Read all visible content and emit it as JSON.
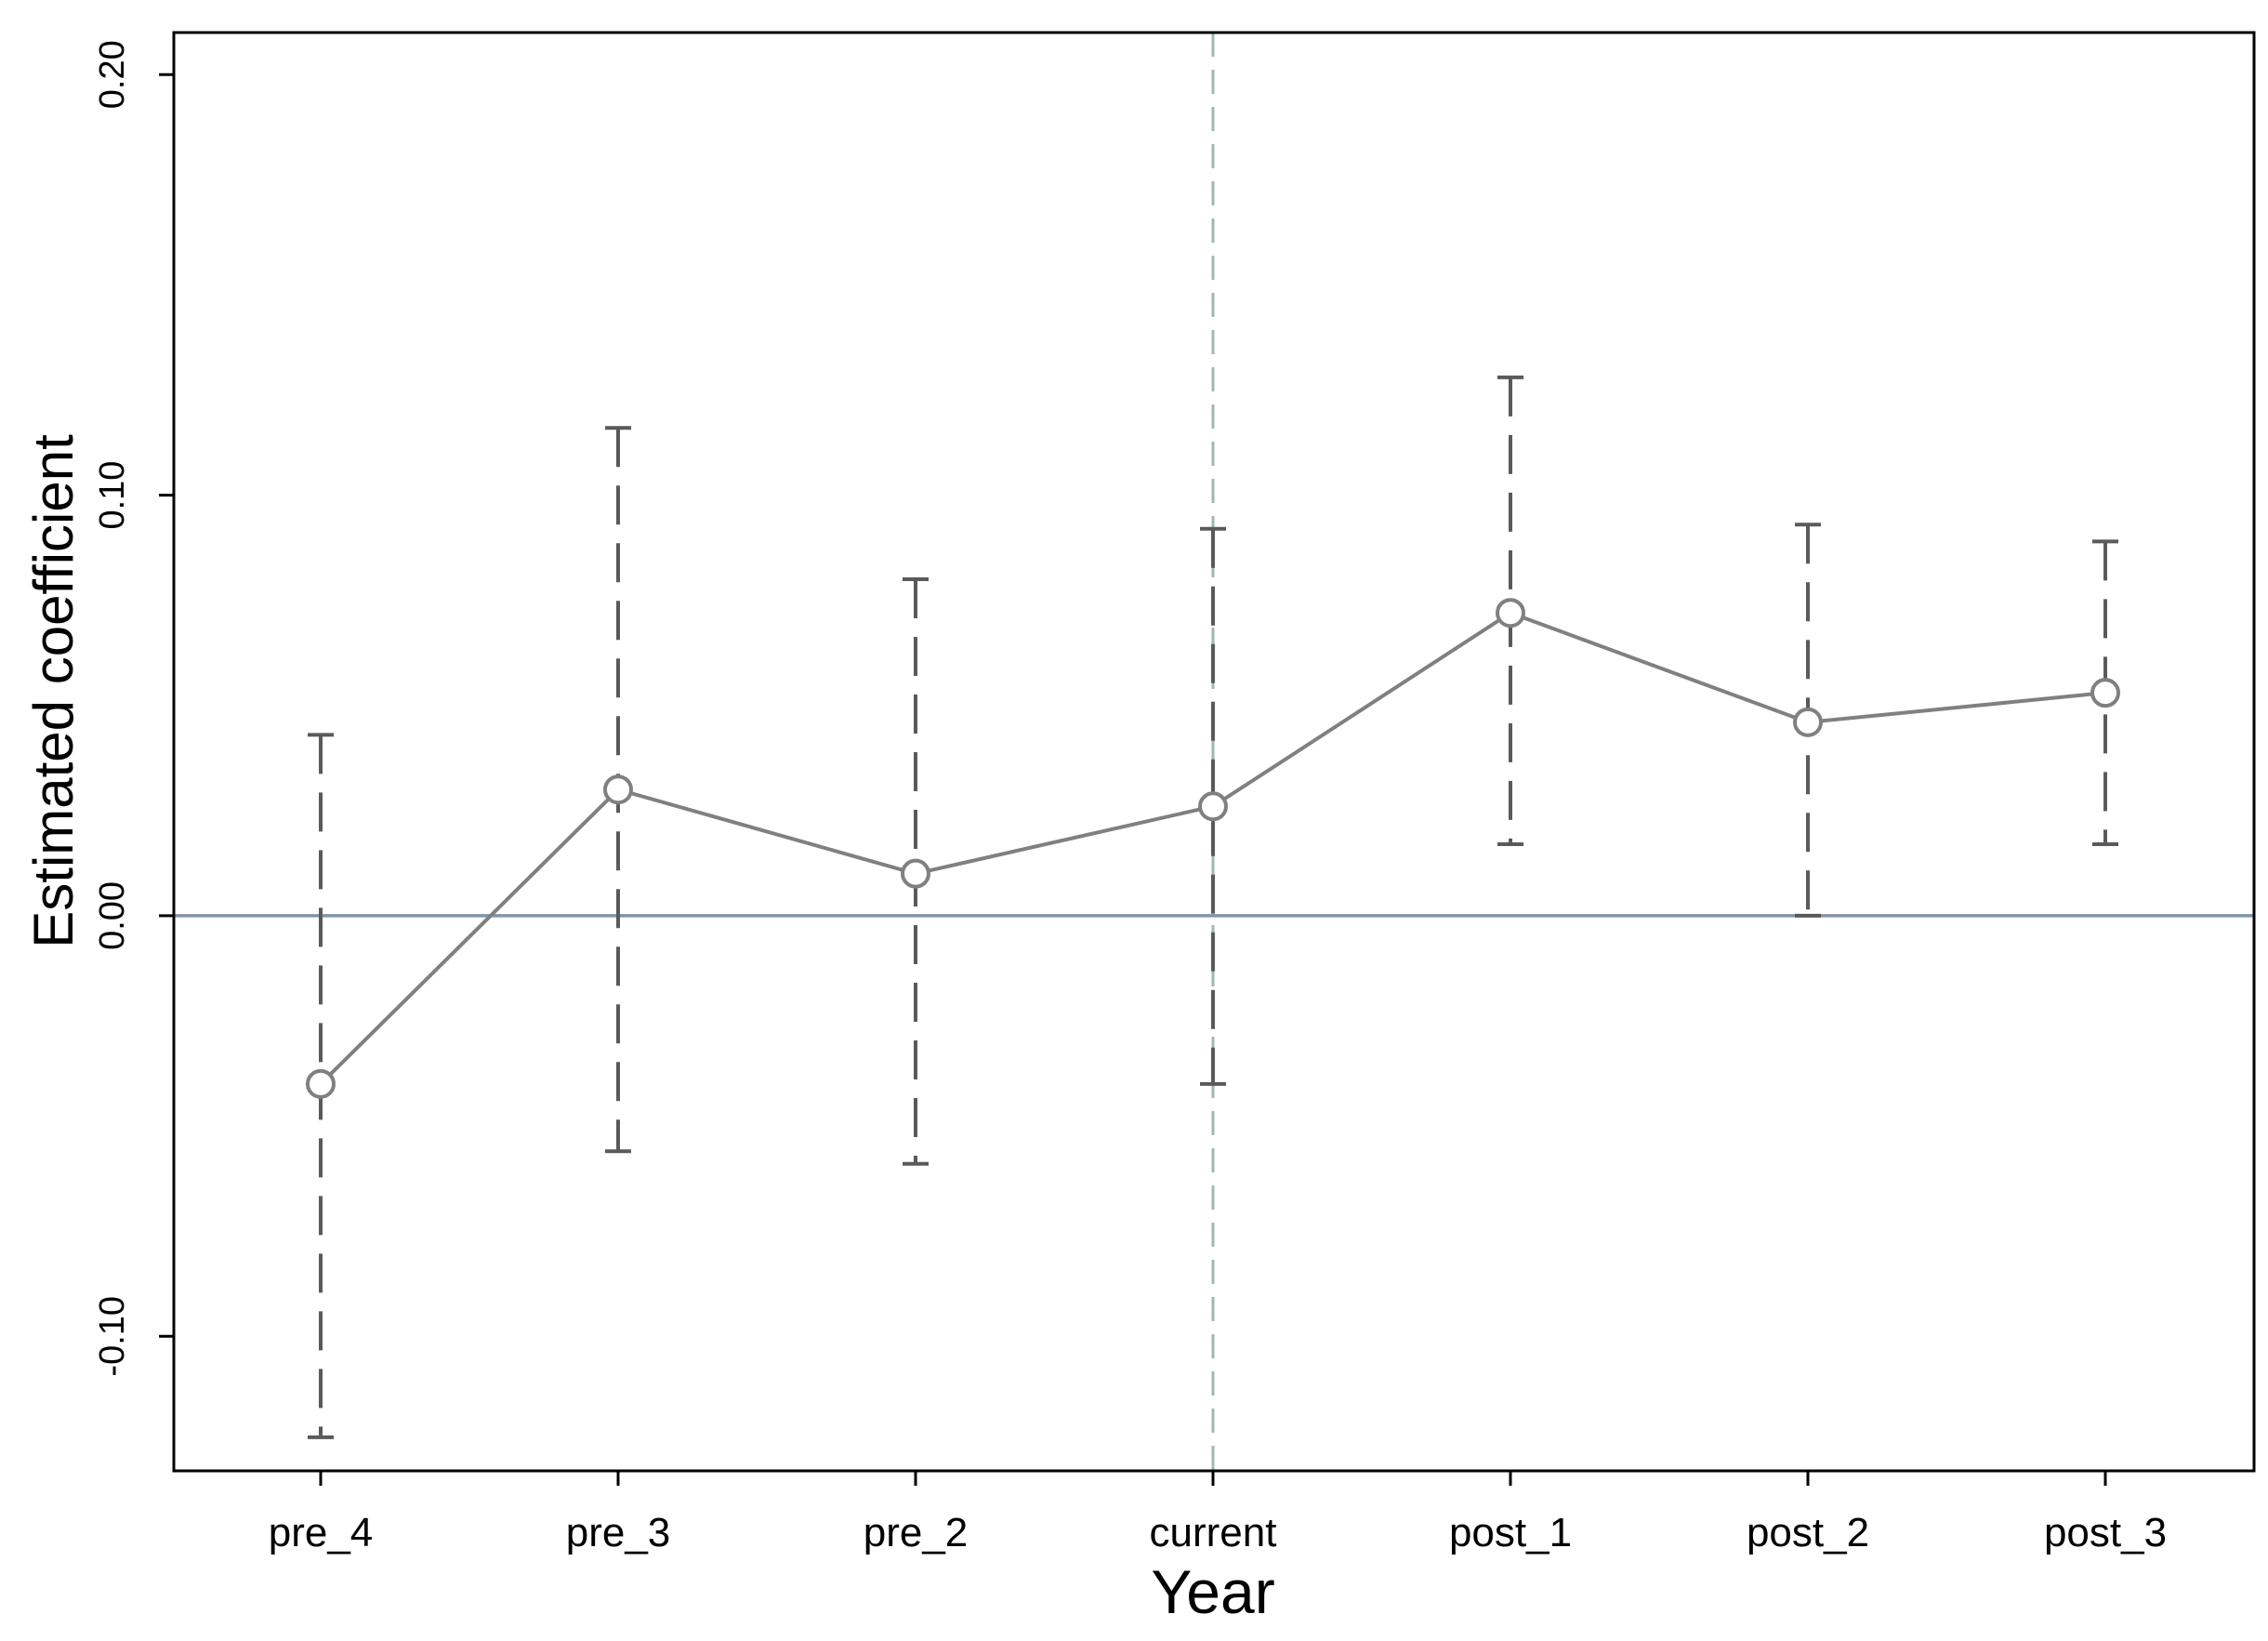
{
  "chart_data": {
    "type": "line",
    "xlabel": "Year",
    "ylabel": "Estimated coefficient",
    "categories": [
      "pre_4",
      "pre_3",
      "pre_2",
      "current",
      "post_1",
      "post_2",
      "post_3"
    ],
    "series": [
      {
        "values": [
          -0.04,
          0.03,
          0.01,
          0.026,
          0.072,
          0.046,
          0.053
        ],
        "ci_lower": [
          -0.124,
          -0.056,
          -0.059,
          -0.04,
          0.017,
          0.0,
          0.017
        ],
        "ci_upper": [
          0.043,
          0.116,
          0.08,
          0.092,
          0.128,
          0.093,
          0.089
        ]
      }
    ],
    "ylim": [
      -0.132,
      0.21
    ],
    "yticks": [
      -0.1,
      0.0,
      0.1,
      0.2
    ],
    "ytick_labels": [
      "-0.10",
      "0.00",
      "0.10",
      "0.20"
    ],
    "reference_lines": {
      "horizontal": {
        "y": 0.0,
        "color": "#7f95a8",
        "style": "solid"
      },
      "vertical": {
        "category": "current",
        "color": "#9fb8ad",
        "style": "dashed"
      }
    },
    "colors": {
      "line": "#808080",
      "ci": "#5a5a5a",
      "axes": "#000000"
    },
    "grid": false,
    "legend": "none"
  }
}
